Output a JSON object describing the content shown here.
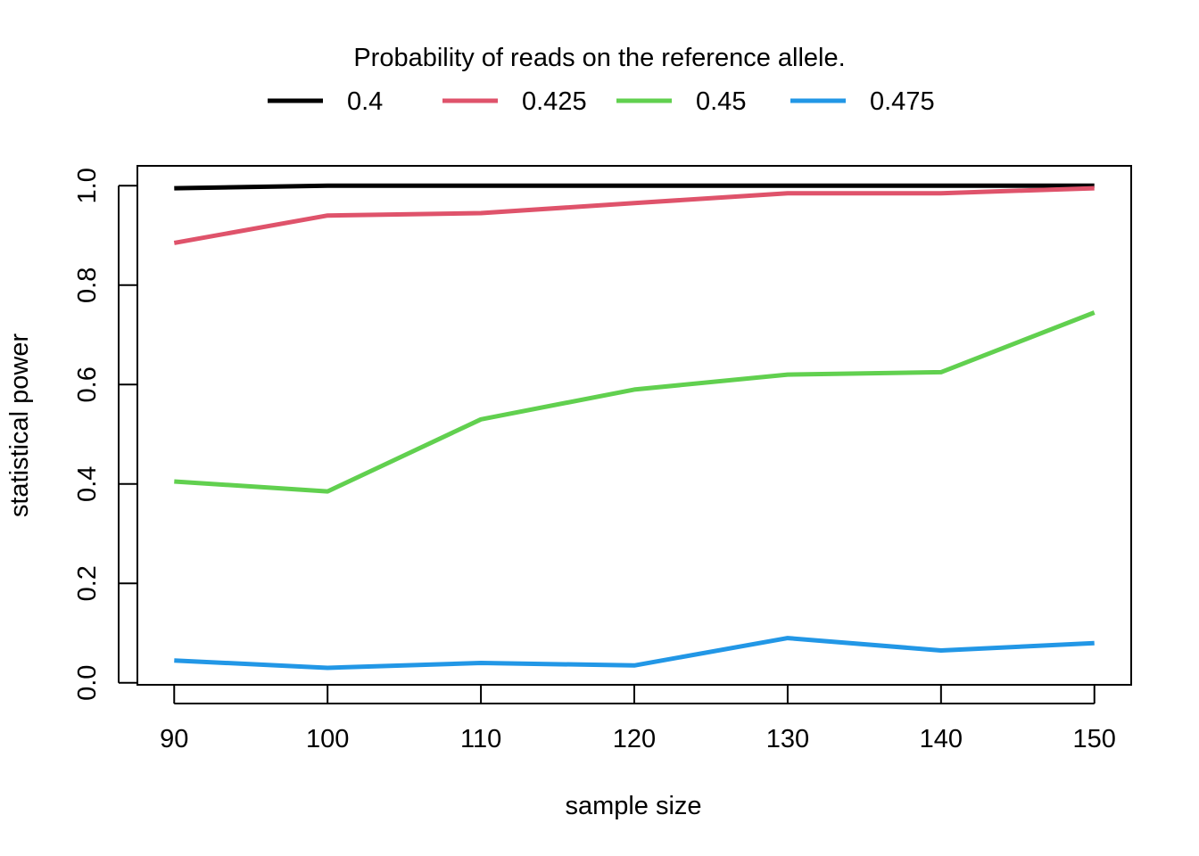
{
  "chart_data": {
    "type": "line",
    "title": "",
    "xlabel": "sample size",
    "ylabel": "statistical power",
    "x": [
      90,
      100,
      110,
      120,
      130,
      140,
      150
    ],
    "xticks": [
      "90",
      "100",
      "110",
      "120",
      "130",
      "140",
      "150"
    ],
    "yticks": [
      "0.0",
      "0.2",
      "0.4",
      "0.6",
      "0.8",
      "1.0"
    ],
    "xlim": [
      87.6,
      152.4
    ],
    "ylim": [
      -0.004,
      1.04
    ],
    "grid": false,
    "legend": {
      "title": "Probability of reads on the reference allele.",
      "placement": "top-center, outside plot"
    },
    "series": [
      {
        "name": "0.4",
        "color": "#000000",
        "values": [
          0.995,
          1.0,
          1.0,
          1.0,
          1.0,
          1.0,
          1.0
        ]
      },
      {
        "name": "0.425",
        "color": "#DF536B",
        "values": [
          0.885,
          0.94,
          0.945,
          0.965,
          0.985,
          0.985,
          0.995
        ]
      },
      {
        "name": "0.45",
        "color": "#61D04F",
        "values": [
          0.405,
          0.385,
          0.53,
          0.59,
          0.62,
          0.625,
          0.745
        ]
      },
      {
        "name": "0.475",
        "color": "#2297E6",
        "values": [
          0.045,
          0.03,
          0.04,
          0.035,
          0.09,
          0.065,
          0.08
        ]
      }
    ]
  }
}
